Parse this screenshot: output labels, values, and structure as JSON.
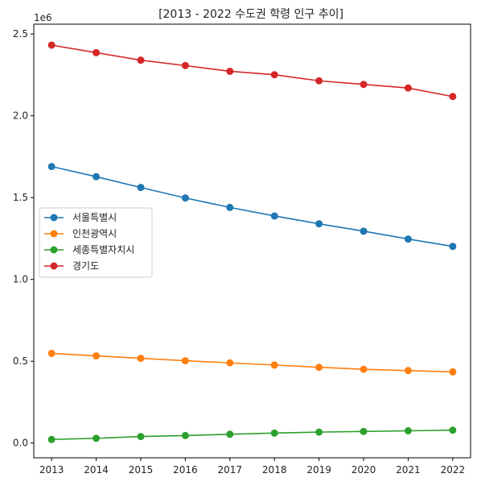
{
  "chart_data": {
    "type": "line",
    "title": "[2013 - 2022 수도권 학령 인구 추이]",
    "xlabel": "",
    "ylabel": "",
    "y_offset_label": "1e6",
    "x": [
      2013,
      2014,
      2015,
      2016,
      2017,
      2018,
      2019,
      2020,
      2021,
      2022
    ],
    "xlim": [
      2012.6,
      2022.4
    ],
    "ylim": [
      -90000,
      2560000
    ],
    "y_ticks": [
      0,
      500000,
      1000000,
      1500000,
      2000000,
      2500000
    ],
    "y_tick_labels": [
      "0.0",
      "0.5",
      "1.0",
      "1.5",
      "2.0",
      "2.5"
    ],
    "grid": false,
    "legend_position": "center-left",
    "series": [
      {
        "name": "서울특별시",
        "color": "#1f77b4",
        "values": [
          1690000,
          1628000,
          1562000,
          1498000,
          1440000,
          1388000,
          1340000,
          1295000,
          1247000,
          1202000
        ]
      },
      {
        "name": "인천광역시",
        "color": "#ff7f0e",
        "values": [
          548000,
          533000,
          518000,
          503000,
          490000,
          477000,
          463000,
          451000,
          443000,
          435000
        ]
      },
      {
        "name": "세종특별자치시",
        "color": "#2ca02c",
        "values": [
          22000,
          29000,
          40000,
          46000,
          54000,
          61000,
          67000,
          71000,
          75000,
          79000
        ]
      },
      {
        "name": "경기도",
        "color": "#d62728",
        "values": [
          2432000,
          2386000,
          2340000,
          2307000,
          2272000,
          2251000,
          2214000,
          2192000,
          2170000,
          2118000
        ]
      }
    ]
  }
}
